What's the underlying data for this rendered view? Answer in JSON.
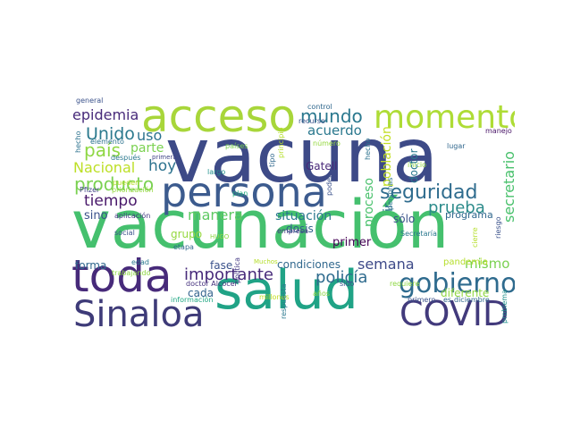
{
  "wordcloud": {
    "words": [
      {
        "text": "vacuna",
        "color": "#3d4a87"
      },
      {
        "text": "vacunación",
        "color": "#45c06e"
      },
      {
        "text": "persona",
        "color": "#3c5b8e"
      },
      {
        "text": "acceso",
        "color": "#a8d63a"
      },
      {
        "text": "momento",
        "color": "#aedc36"
      },
      {
        "text": "toda",
        "color": "#472a7a"
      },
      {
        "text": "salud",
        "color": "#20a386"
      },
      {
        "text": "Sinaloa",
        "color": "#3e3b78"
      },
      {
        "text": "COVID",
        "color": "#423a7c"
      },
      {
        "text": "gobierno",
        "color": "#2f6b8e"
      },
      {
        "text": "seguridad",
        "color": "#2f6c8e"
      },
      {
        "text": "prueba",
        "color": "#2c8b8b"
      },
      {
        "text": "mundo",
        "color": "#2a788e"
      },
      {
        "text": "epidemia",
        "color": "#472a7a"
      },
      {
        "text": "acuerdo",
        "color": "#2a788e"
      },
      {
        "text": "Unido",
        "color": "#2c7a8e"
      },
      {
        "text": "uso",
        "color": "#2c728e"
      },
      {
        "text": "país",
        "color": "#8fd744"
      },
      {
        "text": "parte",
        "color": "#7ad151"
      },
      {
        "text": "hoy",
        "color": "#2c728e"
      },
      {
        "text": "Nacional",
        "color": "#bddf26"
      },
      {
        "text": "producto",
        "color": "#7ad151"
      },
      {
        "text": "tiempo",
        "color": "#48186a"
      },
      {
        "text": "manera",
        "color": "#5ec962"
      },
      {
        "text": "situación",
        "color": "#2a788e"
      },
      {
        "text": "sino",
        "color": "#3b528b"
      },
      {
        "text": "importante",
        "color": "#472a7a"
      },
      {
        "text": "fase",
        "color": "#3b528b"
      },
      {
        "text": "policía",
        "color": "#2f6b8e"
      },
      {
        "text": "semana",
        "color": "#3e4a89"
      },
      {
        "text": "mismo",
        "color": "#7ad151"
      },
      {
        "text": "condiciones",
        "color": "#31688e"
      },
      {
        "text": "forma",
        "color": "#31688e"
      },
      {
        "text": "cada",
        "color": "#33638d"
      },
      {
        "text": "dosis",
        "color": "#33638d"
      },
      {
        "text": "Gatell",
        "color": "#482878"
      },
      {
        "text": "primer",
        "color": "#440154"
      },
      {
        "text": "grupo",
        "color": "#95d840"
      },
      {
        "text": "proceso",
        "color": "#4ac16d"
      },
      {
        "text": "población",
        "color": "#c2df23"
      },
      {
        "text": "secretario",
        "color": "#4ac16d"
      },
      {
        "text": "sólo",
        "color": "#3b528b"
      },
      {
        "text": "programa",
        "color": "#31688e"
      },
      {
        "text": "pandemia",
        "color": "#b5de2b"
      },
      {
        "text": "diferente",
        "color": "#90d743"
      },
      {
        "text": "ir",
        "color": "#2c728e"
      },
      {
        "text": "doctor",
        "color": "#2a788e"
      },
      {
        "text": "Pfizer",
        "color": "#414487"
      },
      {
        "text": "priorización",
        "color": "#95d840"
      },
      {
        "text": "aplicación",
        "color": "#443983"
      },
      {
        "text": "social",
        "color": "#3b528b"
      },
      {
        "text": "etapa",
        "color": "#31688e"
      },
      {
        "text": "edad",
        "color": "#2a788e"
      },
      {
        "text": "HUGO",
        "color": "#8fd744"
      },
      {
        "text": "Muchos",
        "color": "#b5de2b"
      },
      {
        "text": "trabajando",
        "color": "#8fd744"
      },
      {
        "text": "información",
        "color": "#22a884"
      },
      {
        "text": "doctor Alcocer",
        "color": "#46327e"
      },
      {
        "text": "millones",
        "color": "#c2df23"
      },
      {
        "text": "respuesta",
        "color": "#2a788e"
      },
      {
        "text": "política",
        "color": "#443983"
      },
      {
        "text": "empresa",
        "color": "#443983"
      },
      {
        "text": "plan",
        "color": "#27ad81"
      },
      {
        "text": "largo",
        "color": "#21918c"
      },
      {
        "text": "países",
        "color": "#7ad151"
      },
      {
        "text": "tipo",
        "color": "#31688e"
      },
      {
        "text": "principio",
        "color": "#b5de2b"
      },
      {
        "text": "número",
        "color": "#95d840"
      },
      {
        "text": "control",
        "color": "#31688e"
      },
      {
        "text": "recurso",
        "color": "#3b528b"
      },
      {
        "text": "poder",
        "color": "#3b528b"
      },
      {
        "text": "inicio",
        "color": "#95d840"
      },
      {
        "text": "lugar",
        "color": "#31688e"
      },
      {
        "text": "manejo",
        "color": "#481467"
      },
      {
        "text": "general",
        "color": "#3b528b"
      },
      {
        "text": "elemento",
        "color": "#2c728e"
      },
      {
        "text": "hecho",
        "color": "#2c728e"
      },
      {
        "text": "después",
        "color": "#2a788e"
      },
      {
        "text": "primera",
        "color": "#414487"
      },
      {
        "text": "pueden",
        "color": "#b5de2b"
      },
      {
        "text": "mayor",
        "color": "#7ad151"
      },
      {
        "text": "personas",
        "color": "#2c728e"
      },
      {
        "text": "Secretaría",
        "color": "#2a788e"
      },
      {
        "text": "requiere",
        "color": "#8fd744"
      },
      {
        "text": "sido",
        "color": "#3b528b"
      },
      {
        "text": "años",
        "color": "#8fd744"
      },
      {
        "text": "primero",
        "color": "#3b528b"
      },
      {
        "text": "diciembre",
        "color": "#31688e"
      },
      {
        "text": "riesgo",
        "color": "#3b528b"
      },
      {
        "text": "cierre",
        "color": "#b5de2b"
      },
      {
        "text": "problema",
        "color": "#21918c"
      },
      {
        "text": "es",
        "color": "#31688e"
      }
    ]
  }
}
